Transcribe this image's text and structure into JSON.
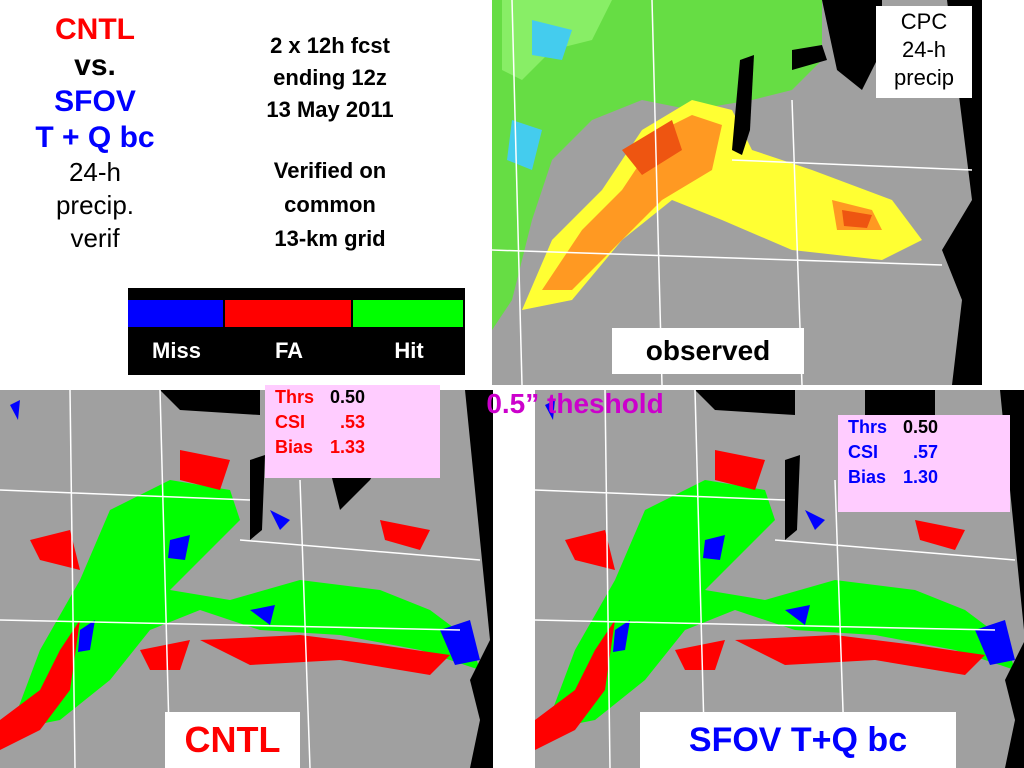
{
  "title": {
    "lines": [
      "CNTL",
      "vs.",
      "SFOV",
      "T + Q bc",
      "24-h",
      "precip.",
      "verif"
    ]
  },
  "forecast": {
    "lines": [
      "2 x 12h fcst",
      "ending 12z",
      "13 May 2011"
    ]
  },
  "verification": {
    "lines": [
      "Verified on",
      "common",
      "13-km grid"
    ]
  },
  "legend": {
    "items": [
      {
        "label": "Miss",
        "color": "#0000ff"
      },
      {
        "label": "FA",
        "color": "#ff0000"
      },
      {
        "label": "Hit",
        "color": "#00ff00"
      }
    ]
  },
  "observed_map": {
    "caption": [
      "CPC",
      "24-h",
      "precip"
    ],
    "label": "observed"
  },
  "threshold_title": "0.5” theshold",
  "cntl_panel": {
    "label": "CNTL",
    "stats": [
      [
        "Thrs",
        "0.50"
      ],
      [
        "CSI",
        ".53"
      ],
      [
        "Bias",
        "1.33"
      ]
    ]
  },
  "sfov_panel": {
    "label": "SFOV T+Q bc",
    "stats": [
      [
        "Thrs",
        "0.50"
      ],
      [
        "CSI",
        ".57"
      ],
      [
        "Bias",
        "1.30"
      ]
    ]
  }
}
